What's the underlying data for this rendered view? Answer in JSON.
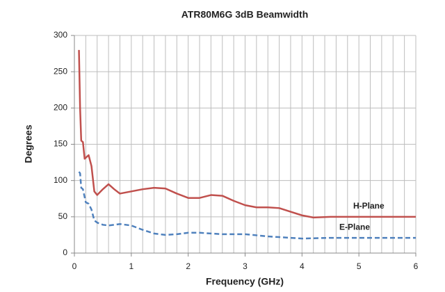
{
  "chart_data": {
    "type": "line",
    "title": "ATR80M6G 3dB Beamwidth",
    "x_label": "Frequency (GHz)",
    "y_label": "Degrees",
    "xlim": [
      0,
      6
    ],
    "xticks": [
      0,
      1,
      2,
      3,
      4,
      5,
      6
    ],
    "xgrid": [
      0,
      0.2,
      0.4,
      0.6,
      0.8,
      1,
      1.2,
      1.4,
      1.6,
      1.8,
      2,
      2.2,
      2.4,
      2.6,
      2.8,
      3,
      3.2,
      3.4,
      3.6,
      3.8,
      4,
      4.2,
      4.4,
      4.6,
      4.8,
      5,
      5.2,
      5.4,
      5.6,
      5.8,
      6
    ],
    "ylim": [
      0,
      300
    ],
    "yticks": [
      0,
      50,
      100,
      150,
      200,
      250,
      300
    ],
    "grid": true,
    "series": [
      {
        "name": "H-Plane",
        "color": "#c0504d",
        "dash": false,
        "x": [
          0.08,
          0.1,
          0.12,
          0.15,
          0.18,
          0.25,
          0.3,
          0.35,
          0.4,
          0.5,
          0.6,
          0.7,
          0.8,
          1.0,
          1.2,
          1.4,
          1.6,
          1.8,
          2.0,
          2.2,
          2.4,
          2.6,
          2.8,
          3.0,
          3.2,
          3.4,
          3.6,
          3.8,
          4.0,
          4.2,
          4.5,
          5.0,
          5.5,
          6.0
        ],
        "values": [
          280,
          200,
          155,
          153,
          130,
          135,
          120,
          85,
          80,
          88,
          95,
          88,
          82,
          85,
          88,
          90,
          89,
          82,
          76,
          76,
          80,
          79,
          72,
          66,
          63,
          63,
          62,
          57,
          52,
          49,
          50,
          50,
          50,
          50
        ]
      },
      {
        "name": "E-Plane",
        "color": "#4f81bd",
        "dash": true,
        "x": [
          0.08,
          0.1,
          0.12,
          0.15,
          0.2,
          0.25,
          0.3,
          0.35,
          0.4,
          0.5,
          0.6,
          0.8,
          1.0,
          1.2,
          1.4,
          1.6,
          1.8,
          2.0,
          2.2,
          2.4,
          2.6,
          3.0,
          3.4,
          3.6,
          4.0,
          4.5,
          5.0,
          5.5,
          6.0
        ],
        "values": [
          112,
          110,
          90,
          88,
          70,
          68,
          60,
          45,
          42,
          39,
          38,
          40,
          38,
          32,
          27,
          25,
          26,
          28,
          28,
          27,
          26,
          26,
          23,
          22,
          20,
          21,
          21,
          21,
          21
        ]
      }
    ]
  }
}
